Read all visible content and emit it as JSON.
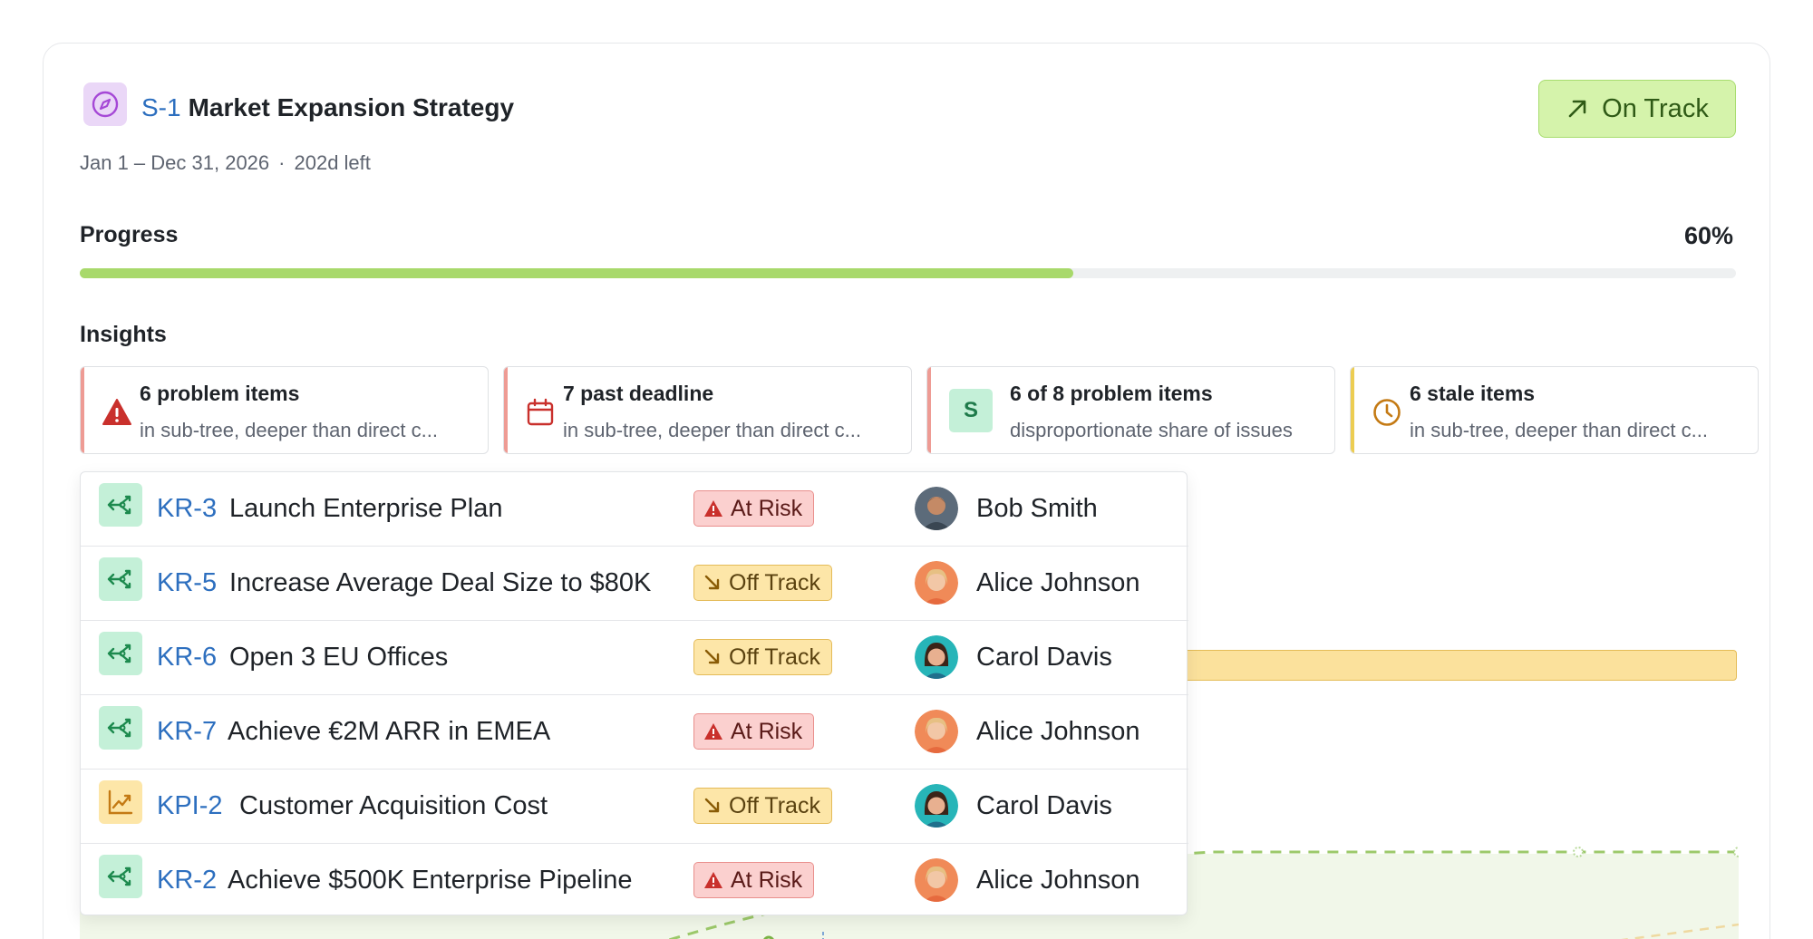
{
  "header": {
    "id": "S-1",
    "title": "Market Expansion Strategy",
    "date_range": "Jan 1 – Dec 31, 2026",
    "separator": "·",
    "time_left": "202d left",
    "status_label": "On Track",
    "strategy_icon": "compass-icon",
    "status_icon": "arrow-up-right-icon"
  },
  "progress": {
    "label": "Progress",
    "value_text": "60%",
    "value": 0.6
  },
  "insights": {
    "label": "Insights",
    "cards": [
      {
        "title": "6 problem items",
        "subtitle": "in sub-tree, deeper than direct c...",
        "icon": "warning-icon",
        "accent": "#ee9b94"
      },
      {
        "title": "7 past deadline",
        "subtitle": "in sub-tree, deeper than direct c...",
        "icon": "calendar-icon",
        "accent": "#ee9b94"
      },
      {
        "title": "6 of 8 problem items",
        "subtitle": "disproportionate share of issues",
        "icon": "avatar-s",
        "avatar_letter": "S",
        "accent": "#ee9b94"
      },
      {
        "title": "6 stale items",
        "subtitle": "in sub-tree, deeper than direct c...",
        "icon": "clock-icon",
        "accent": "#eccd52"
      }
    ]
  },
  "items": [
    {
      "id": "KR-3",
      "name": "Launch Enterprise Plan",
      "status": "At Risk",
      "status_type": "at-risk",
      "owner": "Bob Smith",
      "type": "key-result"
    },
    {
      "id": "KR-5",
      "name": "Increase Average Deal Size to $80K",
      "status": "Off Track",
      "status_type": "off-track",
      "owner": "Alice Johnson",
      "type": "key-result"
    },
    {
      "id": "KR-6",
      "name": "Open 3 EU Offices",
      "status": "Off Track",
      "status_type": "off-track",
      "owner": "Carol Davis",
      "type": "key-result"
    },
    {
      "id": "KR-7",
      "name": "Achieve €2M ARR in EMEA",
      "status": "At Risk",
      "status_type": "at-risk",
      "owner": "Alice Johnson",
      "type": "key-result"
    },
    {
      "id": "KPI-2",
      "name": "Customer Acquisition Cost",
      "status": "Off Track",
      "status_type": "off-track",
      "owner": "Carol Davis",
      "type": "kpi"
    },
    {
      "id": "KR-2",
      "name": "Achieve $500K Enterprise Pipeline",
      "status": "At Risk",
      "status_type": "at-risk",
      "owner": "Alice Johnson",
      "type": "key-result"
    }
  ],
  "colors": {
    "accent_blue": "#2d6fbf",
    "on_track_bg": "#d5f3ab",
    "progress_fill": "#a8d96b",
    "at_risk_bg": "#fbd0cf",
    "off_track_bg": "#fde6a8"
  }
}
